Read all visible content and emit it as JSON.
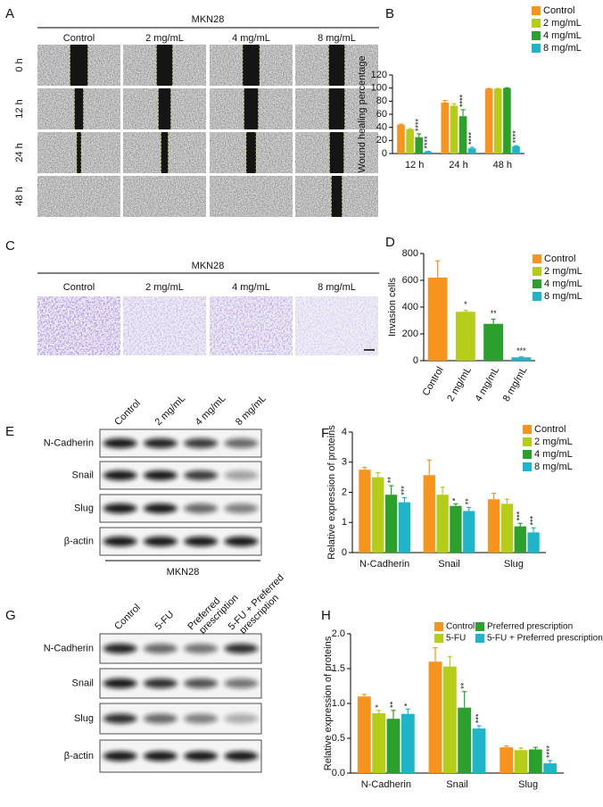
{
  "figure": {
    "A": {
      "panel": "A",
      "title": "MKN28",
      "columns": [
        "Control",
        "2 mg/mL",
        "4 mg/mL",
        "8 mg/mL"
      ],
      "rows": [
        "0 h",
        "12 h",
        "24 h",
        "48 h"
      ]
    },
    "C": {
      "panel": "C",
      "title": "MKN28",
      "columns": [
        "Control",
        "2 mg/mL",
        "4 mg/mL",
        "8 mg/mL"
      ]
    },
    "E": {
      "panel": "E",
      "columns": [
        "Control",
        "2 mg/mL",
        "4 mg/mL",
        "8 mg/mL"
      ],
      "rows": [
        "N-Cadherin",
        "Snail",
        "Slug",
        "β-actin"
      ],
      "footer": "MKN28"
    },
    "G": {
      "panel": "G",
      "columns": [
        "Control",
        "5-FU",
        "Preferred prescription",
        "5-FU + Preferred prescription"
      ],
      "rows": [
        "N-Cadherin",
        "Snail",
        "Slug",
        "β-actin"
      ]
    }
  },
  "chart_data": [
    {
      "type": "bar",
      "panel": "B",
      "ylabel": "Wound healing percentage",
      "categories": [
        "12 h",
        "24 h",
        "48 h"
      ],
      "series": [
        {
          "name": "Control",
          "color": "#f7941d",
          "values": [
            44,
            78,
            99
          ],
          "errors": [
            1,
            3,
            0.5
          ],
          "annotations": [
            null,
            null,
            null
          ]
        },
        {
          "name": "2 mg/mL",
          "color": "#b5cc18",
          "values": [
            37,
            73,
            99
          ],
          "errors": [
            1,
            3,
            0.5
          ],
          "annotations": [
            null,
            null,
            null
          ]
        },
        {
          "name": "4 mg/mL",
          "color": "#2ca02c",
          "values": [
            25,
            57,
            100
          ],
          "errors": [
            5,
            10,
            0.5
          ],
          "annotations": [
            "****",
            "****",
            null
          ]
        },
        {
          "name": "8 mg/mL",
          "color": "#1fb5c9",
          "values": [
            3,
            8,
            11
          ],
          "errors": [
            0.5,
            1.5,
            1
          ],
          "annotations": [
            "****",
            "****",
            "****"
          ]
        }
      ],
      "ylim": [
        0,
        120
      ],
      "yticks": [
        0,
        20,
        40,
        60,
        80,
        100,
        120
      ]
    },
    {
      "type": "bar",
      "panel": "D",
      "ylabel": "Invasion cells",
      "categories": [
        "Control",
        "2 mg/mL",
        "4 mg/mL",
        "8 mg/mL"
      ],
      "values": [
        620,
        365,
        275,
        25
      ],
      "errors": [
        125,
        10,
        35,
        3
      ],
      "colors": [
        "#f7941d",
        "#b5cc18",
        "#2ca02c",
        "#1fb5c9"
      ],
      "annotations": [
        null,
        "*",
        "**",
        "***"
      ],
      "ylim": [
        0,
        800
      ],
      "yticks": [
        0,
        200,
        400,
        600,
        800
      ]
    },
    {
      "type": "bar",
      "panel": "F",
      "ylabel": "Relative expression of proteins",
      "categories": [
        "N-Cadherin",
        "Snail",
        "Slug"
      ],
      "series": [
        {
          "name": "Control",
          "color": "#f7941d",
          "values": [
            2.75,
            2.57,
            1.77
          ],
          "errors": [
            0.08,
            0.5,
            0.2
          ],
          "annotations": [
            null,
            null,
            null
          ]
        },
        {
          "name": "2 mg/mL",
          "color": "#b5cc18",
          "values": [
            2.5,
            1.92,
            1.62
          ],
          "errors": [
            0.15,
            0.25,
            0.15
          ],
          "annotations": [
            null,
            null,
            null
          ]
        },
        {
          "name": "4 mg/mL",
          "color": "#2ca02c",
          "values": [
            1.92,
            1.55,
            0.87
          ],
          "errors": [
            0.3,
            0.07,
            0.1
          ],
          "annotations": [
            "**",
            "*",
            "***"
          ]
        },
        {
          "name": "8 mg/mL",
          "color": "#1fb5c9",
          "values": [
            1.67,
            1.38,
            0.67
          ],
          "errors": [
            0.15,
            0.12,
            0.15
          ],
          "annotations": [
            "***",
            "**",
            "***"
          ]
        }
      ],
      "ylim": [
        0,
        4
      ],
      "yticks": [
        0,
        1,
        2,
        3,
        4
      ]
    },
    {
      "type": "bar",
      "panel": "H",
      "ylabel": "Relative expression of proteins",
      "categories": [
        "N-Cadherin",
        "Snail",
        "Slug"
      ],
      "series": [
        {
          "name": "Control",
          "color": "#f7941d",
          "values": [
            1.1,
            1.6,
            0.37
          ],
          "errors": [
            0.03,
            0.2,
            0.02
          ],
          "annotations": [
            null,
            null,
            null
          ]
        },
        {
          "name": "5-FU",
          "color": "#b5cc18",
          "values": [
            0.86,
            1.53,
            0.33
          ],
          "errors": [
            0.04,
            0.14,
            0.03
          ],
          "annotations": [
            "*",
            null,
            null
          ]
        },
        {
          "name": "Preferred prescription",
          "color": "#2ca02c",
          "values": [
            0.78,
            0.94,
            0.34
          ],
          "errors": [
            0.12,
            0.23,
            0.03
          ],
          "annotations": [
            "**",
            "**",
            null
          ]
        },
        {
          "name": "5-FU + Preferred prescription",
          "color": "#1fb5c9",
          "values": [
            0.85,
            0.64,
            0.14
          ],
          "errors": [
            0.07,
            0.04,
            0.04
          ],
          "annotations": [
            "*",
            "***",
            "****"
          ]
        }
      ],
      "ylim": [
        0,
        2
      ],
      "yticks": [
        {
          "value": 0,
          "label": "0.0"
        },
        0.5,
        {
          "value": 1,
          "label": "1.0"
        },
        1.5,
        {
          "value": 2,
          "label": "2.0"
        }
      ]
    }
  ]
}
